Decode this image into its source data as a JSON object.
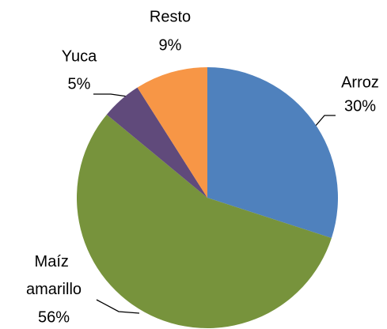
{
  "chart_data": {
    "type": "pie",
    "categories": [
      "Arroz",
      "Maíz amarillo",
      "Yuca",
      "Resto"
    ],
    "values": [
      30,
      56,
      5,
      9
    ],
    "value_labels": [
      "30%",
      "56%",
      "5%",
      "9%"
    ],
    "colors": [
      "#4f81bd",
      "#77933c",
      "#604a7b",
      "#f79646"
    ]
  }
}
